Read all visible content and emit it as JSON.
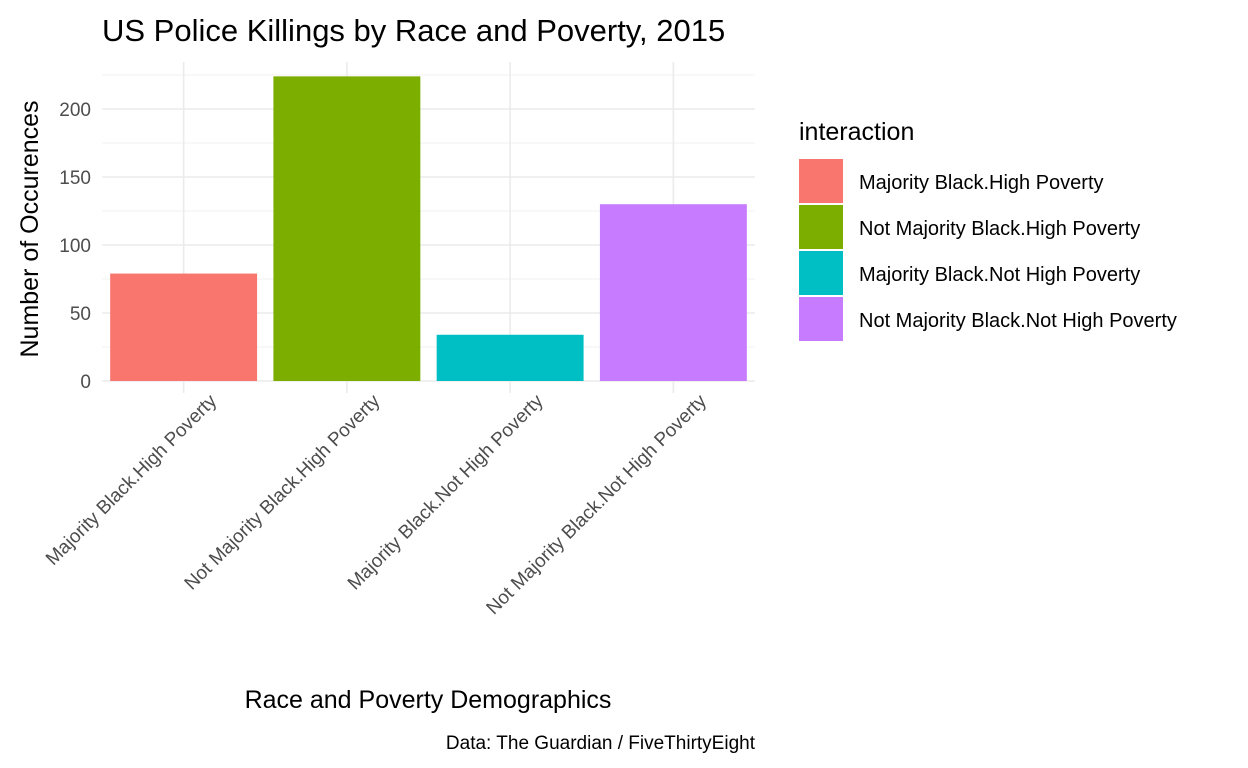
{
  "chart_data": {
    "type": "bar",
    "title": "US Police Killings by Race and Poverty, 2015",
    "xlabel": "Race and Poverty Demographics",
    "ylabel": "Number of Occurences",
    "caption": "Data: The Guardian / FiveThirtyEight",
    "categories": [
      "Majority Black.High Poverty",
      "Not Majority Black.High Poverty",
      "Majority Black.Not High Poverty",
      "Not Majority Black.Not High Poverty"
    ],
    "values": [
      79,
      224,
      34,
      130
    ],
    "colors": [
      "#F8766D",
      "#7CAE00",
      "#00BFC4",
      "#C77CFF"
    ],
    "ylim": [
      0,
      235
    ],
    "yticks": [
      0,
      50,
      100,
      150,
      200
    ],
    "grid": true,
    "legend": {
      "title": "interaction",
      "position": "right",
      "entries": [
        "Majority Black.High Poverty",
        "Not Majority Black.High Poverty",
        "Majority Black.Not High Poverty",
        "Not Majority Black.Not High Poverty"
      ]
    }
  }
}
